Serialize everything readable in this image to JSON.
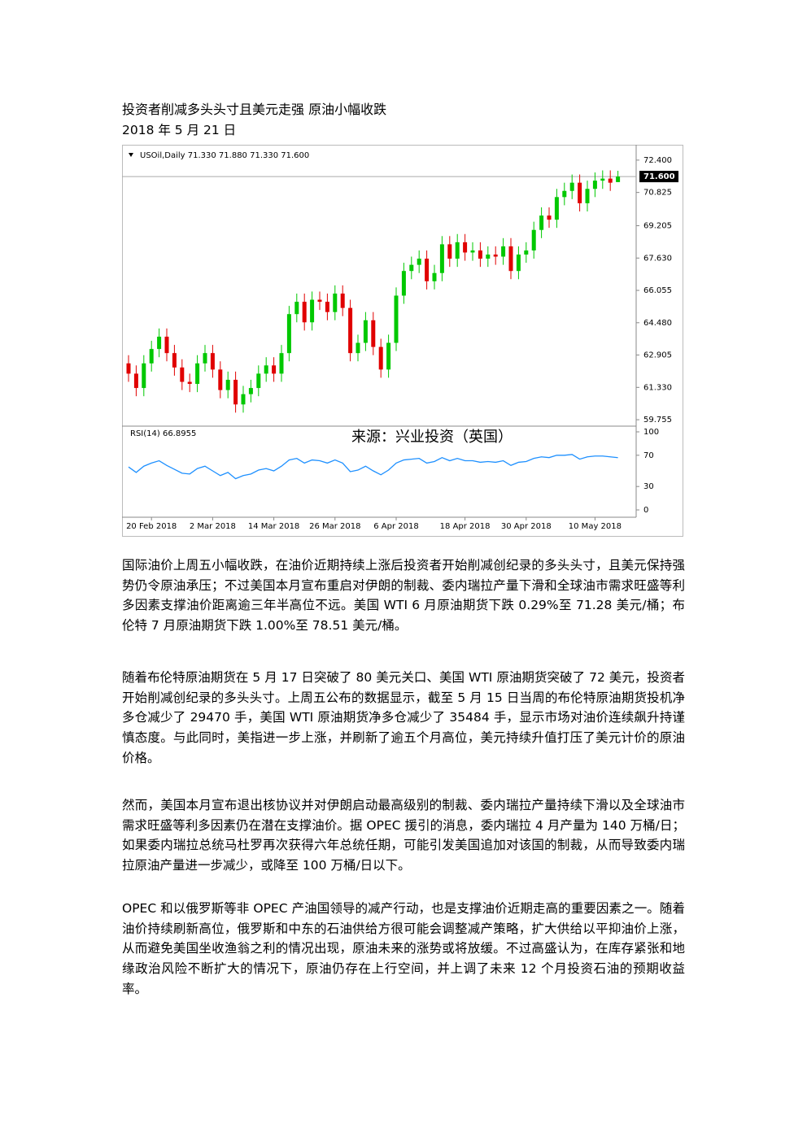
{
  "header": {
    "title": "投资者削减多头头寸且美元走强 原油小幅收跌",
    "date": "2018 年 5 月 21 日"
  },
  "chart_data": {
    "type": "candlestick",
    "header_text": "USOil,Daily  71.330 71.880 71.330 71.600",
    "watermark": "来源：兴业投资（英国）",
    "categories": [
      null,
      null,
      null,
      "20 Feb 2018",
      null,
      null,
      null,
      null,
      null,
      null,
      null,
      "2 Mar 2018",
      null,
      null,
      null,
      null,
      null,
      null,
      null,
      "14 Mar 2018",
      null,
      null,
      null,
      null,
      null,
      null,
      null,
      "26 Mar 2018",
      null,
      null,
      null,
      null,
      null,
      null,
      null,
      "6 Apr 2018",
      null,
      null,
      null,
      null,
      null,
      null,
      null,
      null,
      "18 Apr 2018",
      null,
      null,
      null,
      null,
      null,
      null,
      null,
      "30 Apr 2018",
      null,
      null,
      null,
      null,
      null,
      null,
      null,
      null,
      "10 May 2018",
      null,
      null,
      null
    ],
    "open": [
      62.5,
      62.0,
      61.3,
      62.5,
      63.2,
      63.8,
      63.0,
      62.3,
      61.6,
      61.5,
      62.5,
      63.0,
      62.2,
      61.2,
      61.7,
      60.5,
      61.0,
      61.3,
      62.0,
      62.4,
      62.0,
      63.0,
      64.9,
      65.5,
      64.5,
      65.6,
      65.5,
      65.0,
      65.9,
      65.2,
      63.0,
      63.5,
      64.6,
      63.3,
      62.2,
      63.5,
      65.8,
      67.0,
      67.3,
      67.6,
      66.5,
      66.9,
      68.3,
      67.6,
      68.4,
      67.9,
      68.0,
      67.6,
      67.8,
      67.7,
      68.2,
      67.0,
      67.8,
      68.0,
      69.0,
      69.7,
      69.5,
      70.6,
      70.9,
      71.3,
      70.3,
      71.0,
      71.4,
      71.5,
      71.33
    ],
    "high": [
      62.9,
      62.4,
      62.9,
      63.6,
      64.2,
      64.2,
      63.4,
      62.7,
      62.0,
      62.9,
      63.4,
      63.4,
      62.6,
      62.1,
      62.1,
      61.4,
      61.7,
      62.4,
      62.8,
      62.8,
      63.4,
      65.3,
      65.9,
      65.9,
      66.0,
      66.0,
      65.9,
      66.3,
      66.3,
      65.6,
      63.9,
      65.0,
      65.0,
      63.7,
      63.9,
      66.2,
      67.4,
      67.7,
      68.0,
      68.0,
      67.3,
      68.7,
      68.7,
      68.8,
      68.8,
      68.4,
      68.4,
      68.2,
      68.2,
      68.6,
      68.6,
      68.2,
      68.4,
      69.4,
      70.1,
      70.1,
      71.0,
      71.3,
      71.7,
      71.7,
      71.4,
      71.8,
      71.9,
      71.9,
      71.88
    ],
    "low": [
      61.6,
      60.9,
      60.9,
      62.1,
      62.8,
      62.6,
      61.9,
      61.2,
      61.1,
      61.1,
      62.1,
      61.8,
      60.8,
      60.8,
      60.1,
      60.1,
      60.6,
      60.9,
      61.6,
      61.6,
      61.6,
      62.6,
      64.5,
      64.1,
      64.1,
      65.1,
      64.6,
      64.6,
      64.8,
      62.6,
      62.6,
      63.1,
      62.9,
      61.8,
      61.8,
      63.1,
      65.4,
      66.6,
      66.9,
      66.1,
      66.1,
      66.5,
      67.2,
      67.2,
      67.5,
      67.5,
      67.2,
      67.2,
      67.3,
      67.3,
      66.6,
      66.6,
      67.4,
      67.6,
      68.6,
      69.1,
      69.1,
      70.2,
      70.5,
      69.9,
      69.9,
      70.6,
      71.0,
      70.9,
      71.33
    ],
    "close": [
      62.0,
      61.3,
      62.5,
      63.2,
      63.8,
      63.0,
      62.3,
      61.6,
      61.5,
      62.5,
      63.0,
      62.2,
      61.2,
      61.7,
      60.5,
      61.0,
      61.3,
      62.0,
      62.4,
      62.0,
      63.0,
      64.9,
      65.5,
      64.5,
      65.6,
      65.5,
      65.0,
      65.9,
      65.2,
      63.0,
      63.5,
      64.6,
      63.3,
      62.2,
      63.5,
      65.8,
      67.0,
      67.3,
      67.6,
      66.5,
      66.9,
      68.3,
      67.6,
      68.4,
      67.9,
      68.0,
      67.6,
      67.8,
      67.7,
      68.2,
      67.0,
      67.8,
      68.0,
      69.0,
      69.7,
      69.5,
      70.6,
      70.9,
      71.3,
      70.3,
      71.0,
      71.4,
      71.5,
      71.3,
      71.6
    ],
    "up_color": "#00c800",
    "down_color": "#e00000",
    "ylim": [
      59.6,
      72.95
    ],
    "yticks": [
      {
        "value": 72.4,
        "label": "72.400"
      },
      {
        "value": 70.825,
        "label": "70.825"
      },
      {
        "value": 69.205,
        "label": "69.205"
      },
      {
        "value": 67.63,
        "label": "67.630"
      },
      {
        "value": 66.055,
        "label": "66.055"
      },
      {
        "value": 64.48,
        "label": "64.480"
      },
      {
        "value": 62.905,
        "label": "62.905"
      },
      {
        "value": 61.33,
        "label": "61.330"
      },
      {
        "value": 59.755,
        "label": "59.755"
      }
    ],
    "last_price": {
      "value": 71.6,
      "label": "71.600"
    },
    "rsi": {
      "label": "RSI(14) 66.8955",
      "color": "#1e90ff",
      "ylim": [
        0,
        100
      ],
      "yticks": [
        100,
        70,
        30,
        0
      ],
      "values": [
        55,
        48,
        56,
        60,
        63,
        57,
        52,
        47,
        46,
        53,
        56,
        50,
        44,
        48,
        40,
        44,
        46,
        51,
        53,
        50,
        56,
        64,
        66,
        60,
        64,
        63,
        60,
        64,
        60,
        49,
        51,
        56,
        50,
        45,
        51,
        60,
        64,
        65,
        66,
        60,
        62,
        67,
        63,
        66,
        63,
        63,
        61,
        62,
        61,
        63,
        57,
        61,
        62,
        66,
        68,
        67,
        70,
        70,
        71,
        65,
        68,
        69,
        69,
        68,
        66.8955
      ]
    }
  },
  "paragraphs": [
    "国际油价上周五小幅收跌，在油价近期持续上涨后投资者开始削减创纪录的多头头寸，且美元保持强势仍令原油承压；不过美国本月宣布重启对伊朗的制裁、委内瑞拉产量下滑和全球油市需求旺盛等利多因素支撑油价距离逾三年半高位不远。美国 WTI 6 月原油期货下跌 0.29%至 71.28 美元/桶；布伦特 7 月原油期货下跌 1.00%至 78.51 美元/桶。",
    "随着布伦特原油期货在 5 月 17 日突破了 80 美元关口、美国 WTI 原油期货突破了 72 美元，投资者开始削减创纪录的多头头寸。上周五公布的数据显示，截至 5 月 15 日当周的布伦特原油期货投机净多仓减少了 29470 手，美国 WTI 原油期货净多仓减少了 35484 手，显示市场对油价连续飙升持谨慎态度。与此同时，美指进一步上涨，并刷新了逾五个月高位，美元持续升值打压了美元计价的原油价格。",
    "然而，美国本月宣布退出核协议并对伊朗启动最高级别的制裁、委内瑞拉产量持续下滑以及全球油市需求旺盛等利多因素仍在潜在支撑油价。据 OPEC 援引的消息，委内瑞拉 4 月产量为 140 万桶/日；如果委内瑞拉总统马杜罗再次获得六年总统任期，可能引发美国追加对该国的制裁，从而导致委内瑞拉原油产量进一步减少，或降至 100 万桶/日以下。",
    "OPEC 和以俄罗斯等非 OPEC 产油国领导的减产行动，也是支撑油价近期走高的重要因素之一。随着油价持续刷新高位，俄罗斯和中东的石油供给方很可能会调整减产策略，扩大供给以平抑油价上涨，从而避免美国坐收渔翁之利的情况出现，原油未来的涨势或将放缓。不过高盛认为，在库存紧张和地缘政治风险不断扩大的情况下，原油仍存在上行空间，并上调了未来 12 个月投资石油的预期收益率。"
  ]
}
